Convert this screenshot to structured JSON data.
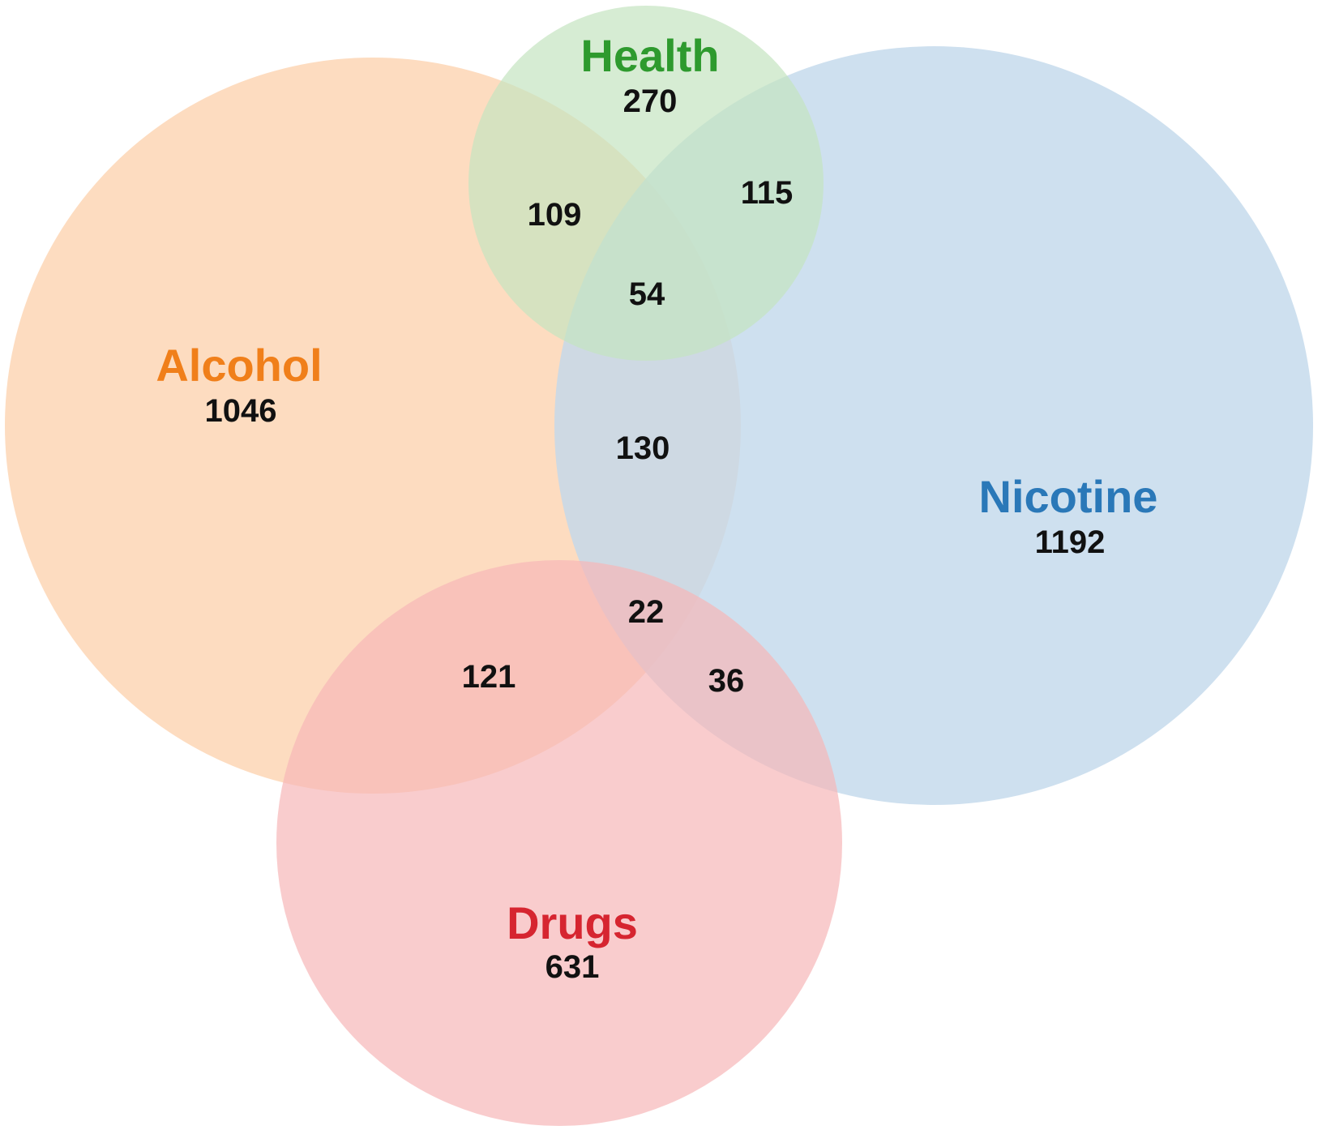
{
  "sets": {
    "alcohol": {
      "label": "Alcohol",
      "count": "1046",
      "fill": "#fcd3b0",
      "text_color": "#f07f1a"
    },
    "nicotine": {
      "label": "Nicotine",
      "count": "1192",
      "fill": "#c2d8eb",
      "text_color": "#2a78b8"
    },
    "health": {
      "label": "Health",
      "count": "270",
      "fill": "#c4e4c0",
      "text_color": "#2e9a2e"
    },
    "drugs": {
      "label": "Drugs",
      "count": "631",
      "fill": "#f7b6b8",
      "text_color": "#d62530"
    }
  },
  "intersections": {
    "alcohol_health": "109",
    "health_nicotine": "115",
    "alcohol_health_nicotine": "54",
    "alcohol_nicotine": "130",
    "alcohol_nicotine_drugs": "22",
    "alcohol_drugs": "121",
    "nicotine_drugs": "36"
  }
}
